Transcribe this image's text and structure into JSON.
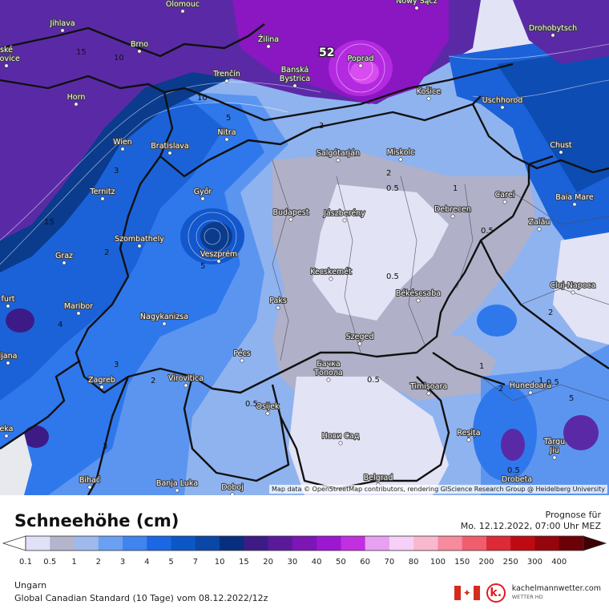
{
  "map": {
    "max_value_label": "52",
    "attribution": "Map data © OpenStreetMap contributors, rendering GIScience Research Group @ Heidelberg University",
    "cities": [
      {
        "name": "Olomouc"
      },
      {
        "name": "Nowy Sącz"
      },
      {
        "name": "Drohobytsch"
      },
      {
        "name": "Jihlava"
      },
      {
        "name": "Žilina"
      },
      {
        "name": "Brno"
      },
      {
        "name": "Poprad"
      },
      {
        "name": "Trenčín"
      },
      {
        "name": "Banská\nBystrica"
      },
      {
        "name": "Košice"
      },
      {
        "name": "Horn"
      },
      {
        "name": "Uschhorod"
      },
      {
        "name": "Nitra"
      },
      {
        "name": "Wien"
      },
      {
        "name": "Bratislava"
      },
      {
        "name": "Chust"
      },
      {
        "name": "Salgótarján"
      },
      {
        "name": "Miskolc"
      },
      {
        "name": "Ternitz"
      },
      {
        "name": "Győr"
      },
      {
        "name": "Carei"
      },
      {
        "name": "Baia Mare"
      },
      {
        "name": "Budapest"
      },
      {
        "name": "Jászberény"
      },
      {
        "name": "Debrecen"
      },
      {
        "name": "Szombathely"
      },
      {
        "name": "Zalău"
      },
      {
        "name": "Graz"
      },
      {
        "name": "Veszprém"
      },
      {
        "name": "Kecskemét"
      },
      {
        "name": "Cluj-Napoca"
      },
      {
        "name": "Békéscsaba"
      },
      {
        "name": "Maribor"
      },
      {
        "name": "Paks"
      },
      {
        "name": "Nagykanizsa"
      },
      {
        "name": "Szeged"
      },
      {
        "name": "Pécs"
      },
      {
        "name": "Бачка\nТопола"
      },
      {
        "name": "Zagreb"
      },
      {
        "name": "Virovitica"
      },
      {
        "name": "Timișoara"
      },
      {
        "name": "Hunedoara"
      },
      {
        "name": "Osijek"
      },
      {
        "name": "Нови Сад"
      },
      {
        "name": "Reșița"
      },
      {
        "name": "Bihać"
      },
      {
        "name": "Banja Luka"
      },
      {
        "name": "Doboj"
      },
      {
        "name": "Belgrad"
      },
      {
        "name": "Drobeta"
      },
      {
        "name": "Târgu\nJiu"
      },
      {
        "name": "ljana"
      },
      {
        "name": "ské\nojovice"
      },
      {
        "name": "furt"
      },
      {
        "name": "eka"
      }
    ],
    "contour_labels": [
      "15",
      "10",
      "5",
      "3",
      "2",
      "1",
      "0.5",
      "4",
      "3",
      "2",
      "0.5",
      "0.5",
      "1",
      "0.5",
      "1",
      "2",
      "0.5",
      "3",
      "2",
      "0.5",
      "5",
      "3",
      "5",
      "15",
      "10",
      "2",
      "0.5"
    ]
  },
  "footer": {
    "title": "Schneehöhe (cm)",
    "forecast_label": "Prognose für",
    "forecast_date": "Mo. 12.12.2022, 07:00 Uhr MEZ",
    "region": "Ungarn",
    "model": "Global Canadian Standard (10 Tage) vom 08.12.2022/12z",
    "brand_name": "kachelmannwetter.com",
    "brand_sub": "WETTER HD"
  },
  "legend": {
    "items": [
      {
        "label": "0.1",
        "color": "#e0e0f6"
      },
      {
        "label": "0.5",
        "color": "#b4b4cc"
      },
      {
        "label": "1",
        "color": "#9eb9ec"
      },
      {
        "label": "2",
        "color": "#6aa0f2"
      },
      {
        "label": "3",
        "color": "#3f84ef"
      },
      {
        "label": "4",
        "color": "#1c67e3"
      },
      {
        "label": "5",
        "color": "#0d56c6"
      },
      {
        "label": "7",
        "color": "#0a47a6"
      },
      {
        "label": "10",
        "color": "#082f7e"
      },
      {
        "label": "15",
        "color": "#3d1b86"
      },
      {
        "label": "20",
        "color": "#5b1a9a"
      },
      {
        "label": "30",
        "color": "#7c16b5"
      },
      {
        "label": "40",
        "color": "#9c17d0"
      },
      {
        "label": "50",
        "color": "#c22fe0"
      },
      {
        "label": "60",
        "color": "#e8a0f2"
      },
      {
        "label": "70",
        "color": "#f6d0f7"
      },
      {
        "label": "80",
        "color": "#f9b8cf"
      },
      {
        "label": "100",
        "color": "#f78a9c"
      },
      {
        "label": "150",
        "color": "#f05e6e"
      },
      {
        "label": "200",
        "color": "#dc2a36"
      },
      {
        "label": "250",
        "color": "#be0a12"
      },
      {
        "label": "300",
        "color": "#96050c"
      },
      {
        "label": "400",
        "color": "#6b0006"
      }
    ]
  },
  "colors": {
    "light_snow": "#e2e2f6",
    "grey": "#b0b0c8",
    "light_blue": "#8fb3ef",
    "mid_blue": "#5b95f0",
    "blue": "#2f78ec",
    "deep_blue": "#1257cc",
    "navy": "#0a3b8d",
    "indigo": "#3b1a86",
    "purple": "#6a16a8",
    "violet": "#8f17c6"
  }
}
